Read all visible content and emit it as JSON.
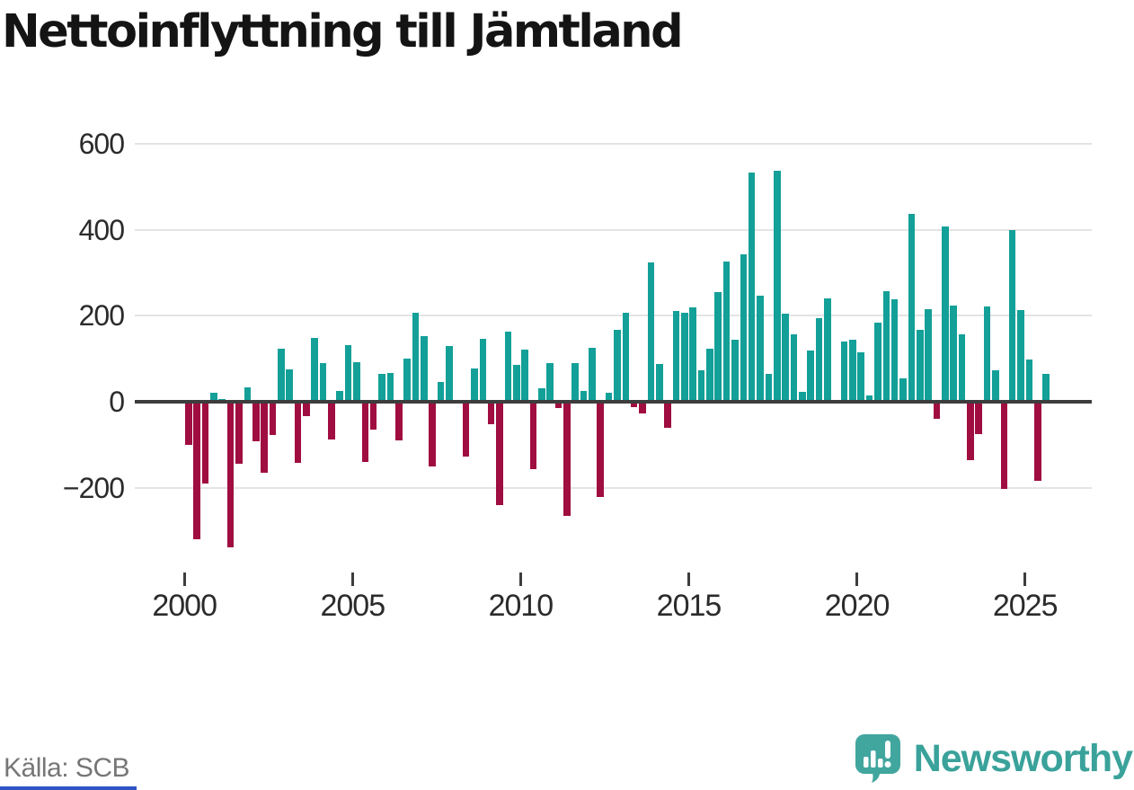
{
  "title": "Nettoinflyttning till Jämtland",
  "source_note": "Källa: SCB",
  "branding": {
    "name": "Newsworthy",
    "icon": "newsworthy-speech-bubble-chart-icon"
  },
  "colors": {
    "positive_bar": "#13a098",
    "negative_bar": "#a00d40",
    "gridline": "#e4e4e4",
    "zero_line": "#3d3d3d",
    "title_text": "#141414",
    "axis_text": "#2b2b2b",
    "source_text": "#767676",
    "brand_teal": "#3aa29a",
    "footer_strip_blue": "#2d53c4"
  },
  "chart_data": {
    "type": "bar",
    "title": "Nettoinflyttning till Jämtland",
    "frequency": "quarterly",
    "start_period": "2000-Q1",
    "end_period": "2025-Q3",
    "values": [
      -100,
      -320,
      -190,
      21,
      6,
      -338,
      -144,
      33,
      -93,
      -165,
      -78,
      123,
      76,
      -143,
      -33,
      148,
      90,
      -87,
      25,
      132,
      91,
      -140,
      -64,
      64,
      66,
      -89,
      101,
      207,
      153,
      -150,
      45,
      129,
      0,
      -128,
      77,
      146,
      -52,
      -240,
      164,
      85,
      121,
      -157,
      32,
      89,
      -15,
      -266,
      89,
      25,
      126,
      -221,
      21,
      168,
      208,
      -12,
      -27,
      325,
      88,
      -61,
      212,
      208,
      219,
      74,
      124,
      256,
      326,
      145,
      342,
      534,
      246,
      64,
      538,
      204,
      157,
      23,
      120,
      194,
      241,
      0,
      140,
      144,
      115,
      14,
      185,
      258,
      238,
      54,
      437,
      168,
      216,
      -39,
      408,
      224,
      157,
      -136,
      -75,
      221,
      74,
      -202,
      400,
      213,
      99,
      -185,
      64
    ],
    "xlabel": "",
    "ylabel": "",
    "y_ticks": [
      {
        "value": 600,
        "label": "600"
      },
      {
        "value": 400,
        "label": "400"
      },
      {
        "value": 200,
        "label": "200"
      },
      {
        "value": 0,
        "label": "0"
      },
      {
        "value": -200,
        "label": "−200"
      }
    ],
    "x_ticks": [
      {
        "year": 2000,
        "label": "2000"
      },
      {
        "year": 2005,
        "label": "2005"
      },
      {
        "year": 2010,
        "label": "2010"
      },
      {
        "year": 2015,
        "label": "2015"
      },
      {
        "year": 2020,
        "label": "2020"
      },
      {
        "year": 2025,
        "label": "2025"
      }
    ],
    "ylim": [
      -360,
      650
    ],
    "grid": "horizontal",
    "legend": "none"
  }
}
